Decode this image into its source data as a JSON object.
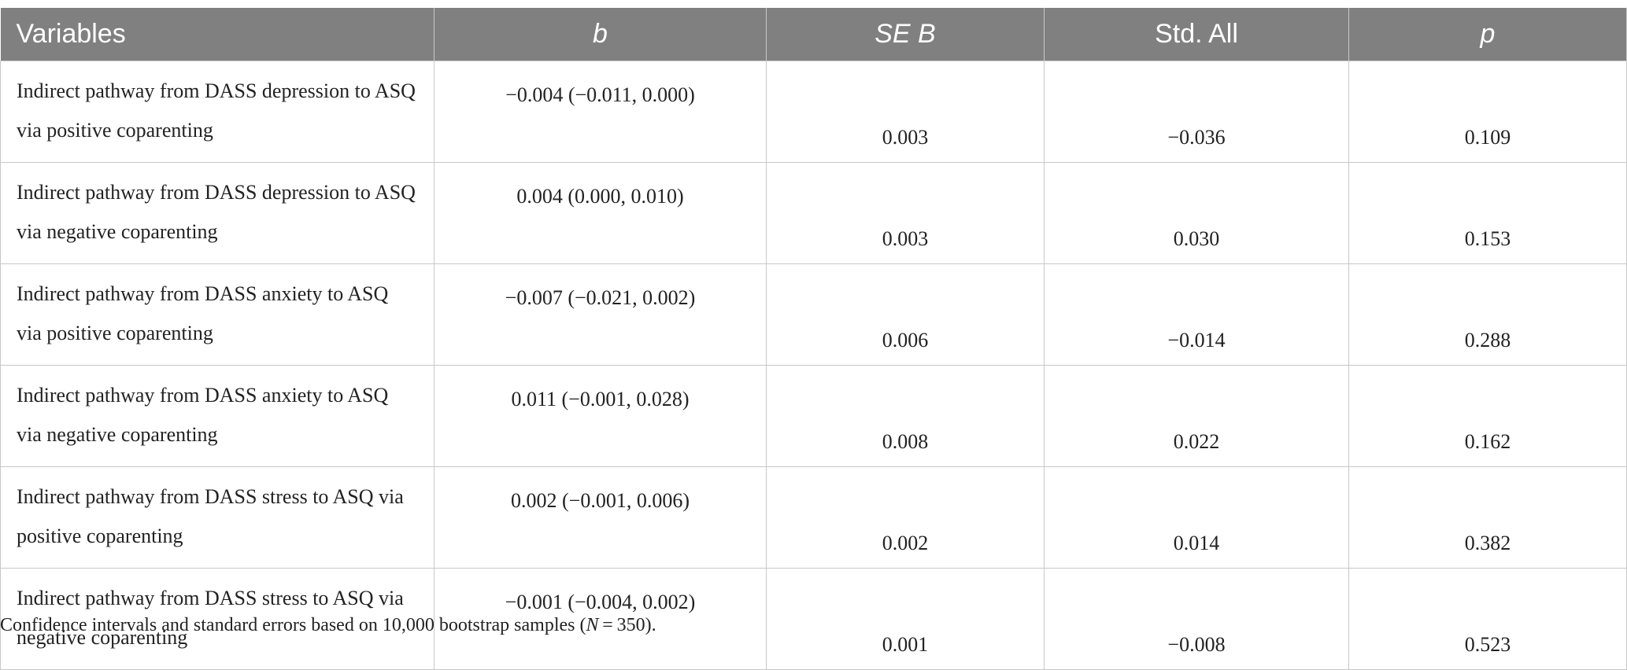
{
  "table": {
    "header": [
      "Variables",
      "b",
      "SE B",
      "Std. All",
      "p"
    ],
    "rows": [
      [
        "Indirect pathway from DASS depression to ASQ via positive coparenting",
        "−0.004 (−0.011, 0.000)",
        "0.003",
        "−0.036",
        "0.109"
      ],
      [
        "Indirect pathway from DASS depression to ASQ via negative coparenting",
        "0.004 (0.000, 0.010)",
        "0.003",
        "0.030",
        "0.153"
      ],
      [
        "Indirect pathway from DASS anxiety to ASQ via positive coparenting",
        "−0.007 (−0.021, 0.002)",
        "0.006",
        "−0.014",
        "0.288"
      ],
      [
        "Indirect pathway from DASS anxiety to ASQ via negative coparenting",
        "0.011 (−0.001, 0.028)",
        "0.008",
        "0.022",
        "0.162"
      ],
      [
        "Indirect pathway from DASS stress to ASQ via positive coparenting",
        "0.002 (−0.001, 0.006)",
        "0.002",
        "0.014",
        "0.382"
      ],
      [
        "Indirect pathway from DASS stress to ASQ via negative coparenting",
        "−0.001 (−0.004, 0.002)",
        "0.001",
        "−0.008",
        "0.523"
      ]
    ]
  },
  "footnote": {
    "before": "Confidence intervals and standard errors based on 10,000 bootstrap samples (",
    "italic": "N",
    "after": " = 350)."
  }
}
